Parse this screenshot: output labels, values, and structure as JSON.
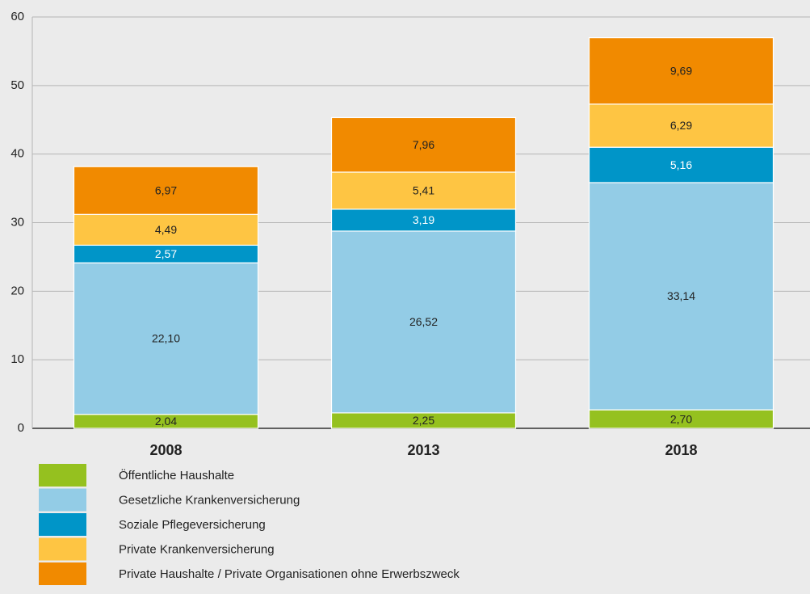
{
  "chart_data": {
    "type": "stacked-bar",
    "categories": [
      "2008",
      "2013",
      "2018"
    ],
    "series": [
      {
        "name": "Öffentliche Haushalte",
        "color": "#95c11f",
        "values": [
          2.04,
          2.25,
          2.7
        ],
        "value_labels": [
          "2,04",
          "2,25",
          "2,70"
        ]
      },
      {
        "name": "Gesetzliche Krankenversicherung",
        "color": "#93cce6",
        "values": [
          22.1,
          26.52,
          33.14
        ],
        "value_labels": [
          "22,10",
          "26,52",
          "33,14"
        ]
      },
      {
        "name": "Soziale Pflegeversicherung",
        "color": "#0095c8",
        "values": [
          2.57,
          3.19,
          5.16
        ],
        "value_labels": [
          "2,57",
          "3,19",
          "5,16"
        ]
      },
      {
        "name": "Private Krankenversicherung",
        "color": "#fec543",
        "values": [
          4.49,
          5.41,
          6.29
        ],
        "value_labels": [
          "4,49",
          "5,41",
          "6,29"
        ]
      },
      {
        "name": "Private Haushalte / Private Organisationen ohne Erwerbszweck",
        "color": "#f18a00",
        "values": [
          6.97,
          7.96,
          9.69
        ],
        "value_labels": [
          "6,97",
          "7,96",
          "9,69"
        ]
      }
    ],
    "ylim": [
      0,
      60
    ],
    "yticks": [
      0,
      10,
      20,
      30,
      40,
      50,
      60
    ],
    "grid": true
  }
}
